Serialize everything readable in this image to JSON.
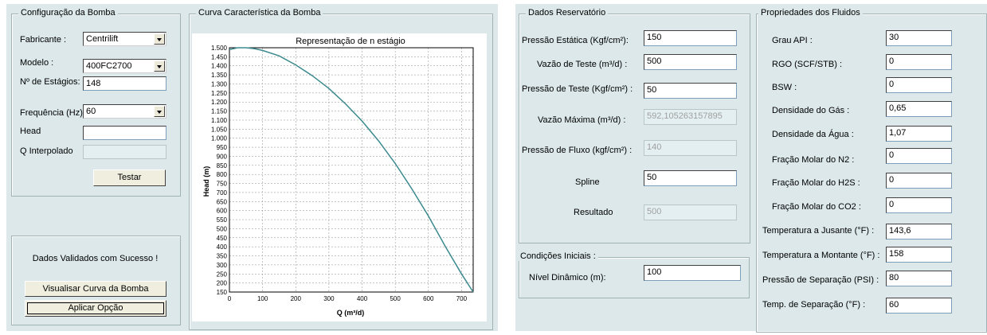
{
  "left_panel": {
    "pump_config": {
      "title": "Configuração da Bomba",
      "fabricante_label": "Fabricante :",
      "fabricante_value": "Centrilift",
      "modelo_label": "Modelo :",
      "modelo_value": "400FC2700",
      "estagios_label": "Nº de Estágios:",
      "estagios_value": "148",
      "frequencia_label": "Frequência (Hz) :",
      "frequencia_value": "60",
      "head_label": "Head",
      "head_value": "",
      "q_label": "Q Interpolado",
      "q_value": "",
      "test_button": "Testar"
    },
    "status": {
      "message": "Dados Validados com Sucesso !",
      "view_curve_button": "Visualisar Curva da Bomba",
      "apply_button": "Aplicar Opção"
    },
    "curve_group_title": "Curva Característica da Bomba"
  },
  "chart_data": {
    "type": "line",
    "title": "Representação de n estágio",
    "xlabel": "Q (m³/d)",
    "ylabel": "Head (m)",
    "xlim": [
      0,
      735
    ],
    "ylim": [
      150,
      1500
    ],
    "x_ticks": [
      0,
      100,
      200,
      300,
      400,
      500,
      600,
      700
    ],
    "y_ticks": [
      150,
      200,
      250,
      300,
      350,
      400,
      450,
      500,
      550,
      600,
      650,
      700,
      750,
      800,
      850,
      900,
      950,
      1000,
      1050,
      1100,
      1150,
      1200,
      1250,
      1300,
      1350,
      1400,
      1450,
      1500
    ],
    "y_tick_labels": [
      "150",
      "200",
      "250",
      "300",
      "350",
      "400",
      "450",
      "500",
      "550",
      "600",
      "650",
      "700",
      "750",
      "800",
      "850",
      "900",
      "950",
      "1.000",
      "1.050",
      "1.100",
      "1.150",
      "1.200",
      "1.250",
      "1.300",
      "1.350",
      "1.400",
      "1.450",
      "1.500"
    ],
    "grid": true,
    "series": [
      {
        "color": "#3c8a8e",
        "x": [
          0,
          25,
          50,
          75,
          100,
          150,
          200,
          250,
          300,
          350,
          400,
          450,
          500,
          550,
          600,
          650,
          700,
          735
        ],
        "y": [
          1490,
          1500,
          1500,
          1495,
          1485,
          1455,
          1405,
          1345,
          1275,
          1190,
          1095,
          985,
          860,
          720,
          570,
          405,
          250,
          150
        ]
      }
    ]
  },
  "right_panel": {
    "reservoir": {
      "title": "Dados Reservatório",
      "pressao_estatica_label": "Pressão Estática (Kgf/cm²):",
      "pressao_estatica_value": "150",
      "vazao_teste_label": "Vazão de Teste (m³/d) :",
      "vazao_teste_value": "500",
      "pressao_teste_label": "Pressão de Teste (Kgf/cm²) :",
      "pressao_teste_value": "50",
      "vazao_maxima_label": "Vazão Máxima (m³/d) :",
      "vazao_maxima_value": "592,105263157895",
      "pressao_fluxo_label": "Pressão de Fluxo (kgf/cm²) :",
      "pressao_fluxo_value": "140",
      "spline_label": "Spline",
      "spline_value": "50",
      "resultado_label": "Resultado",
      "resultado_value": "500"
    },
    "initial": {
      "title": "Condições Iniciais :",
      "nivel_label": "Nível Dinâmico (m):",
      "nivel_value": "100"
    },
    "fluids": {
      "title": "Propriedades dos Fluidos",
      "items": [
        {
          "label": "Grau API :",
          "value": "30"
        },
        {
          "label": "RGO (SCF/STB) :",
          "value": "0"
        },
        {
          "label": "BSW :",
          "value": "0"
        },
        {
          "label": "Densidade do Gás :",
          "value": "0,65"
        },
        {
          "label": "Densidade da  Água :",
          "value": "1,07"
        },
        {
          "label": "Fração Molar do N2 :",
          "value": "0"
        },
        {
          "label": "Fração Molar do H2S :",
          "value": "0"
        },
        {
          "label": "Fração Molar do CO2 :",
          "value": "0"
        },
        {
          "label": "Temperatura a Jusante (°F) :",
          "value": "143,6"
        },
        {
          "label": "Temperatura a Montante (°F) :",
          "value": "158"
        },
        {
          "label": "Pressão de Separação (PSI) :",
          "value": "80"
        },
        {
          "label": "Temp. de Separação (°F) :",
          "value": "60"
        }
      ]
    }
  }
}
